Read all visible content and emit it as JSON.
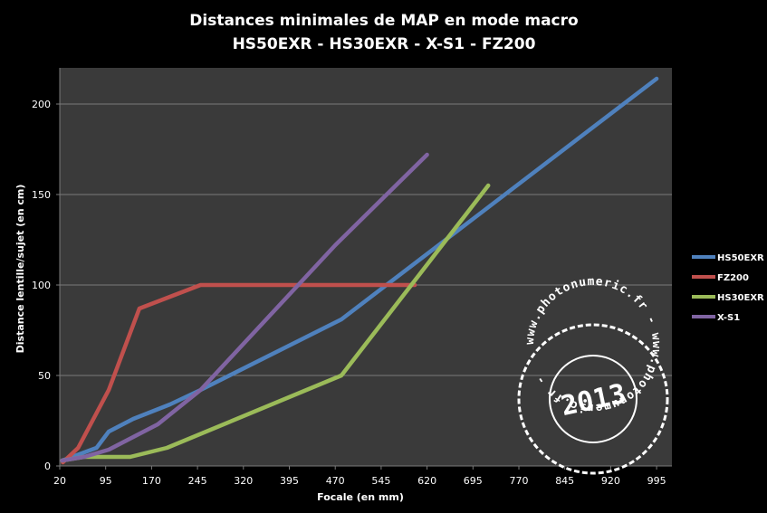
{
  "chart_data": {
    "type": "line",
    "title": "Distances minimales de MAP en mode macro",
    "subtitle": "HS50EXR - HS30EXR - X-S1 - FZ200",
    "xlabel": "Focale (en mm)",
    "ylabel": "Distance lentille/sujet (en cm)",
    "xlim": [
      20,
      1020
    ],
    "ylim": [
      0,
      220
    ],
    "x_ticks": [
      20,
      95,
      170,
      245,
      320,
      395,
      470,
      545,
      620,
      695,
      770,
      845,
      920,
      995
    ],
    "y_ticks": [
      0,
      50,
      100,
      150,
      200
    ],
    "grid": "horizontal",
    "legend_position": "right",
    "series": [
      {
        "name": "HS50EXR",
        "color": "#4f81bd",
        "points": [
          [
            24,
            3
          ],
          [
            40,
            5
          ],
          [
            80,
            10
          ],
          [
            100,
            19
          ],
          [
            140,
            26
          ],
          [
            200,
            34
          ],
          [
            250,
            42
          ],
          [
            480,
            81
          ],
          [
            995,
            214
          ]
        ]
      },
      {
        "name": "FZ200",
        "color": "#c0504d",
        "points": [
          [
            25,
            2
          ],
          [
            50,
            10
          ],
          [
            100,
            42
          ],
          [
            150,
            87
          ],
          [
            250,
            100
          ],
          [
            600,
            100
          ]
        ]
      },
      {
        "name": "HS30EXR",
        "color": "#9bbb59",
        "points": [
          [
            24,
            3
          ],
          [
            60,
            5
          ],
          [
            135,
            5
          ],
          [
            195,
            10
          ],
          [
            480,
            50
          ],
          [
            720,
            155
          ]
        ]
      },
      {
        "name": "X-S1",
        "color": "#8064a2",
        "points": [
          [
            24,
            3
          ],
          [
            60,
            5
          ],
          [
            100,
            9
          ],
          [
            180,
            23
          ],
          [
            250,
            42
          ],
          [
            470,
            122
          ],
          [
            620,
            172
          ]
        ]
      }
    ]
  },
  "watermark": {
    "year": "2013",
    "ring_text": "www.photonumeric.fr - www.photonumeric.fr - "
  }
}
